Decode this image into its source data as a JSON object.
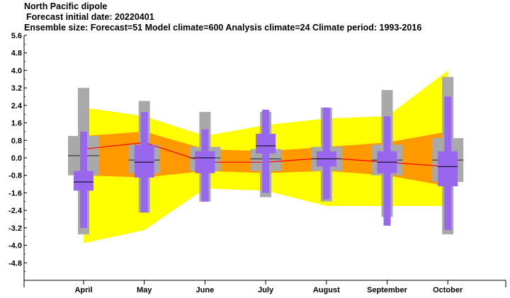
{
  "header": {
    "title": "North Pacific dipole",
    "forecast_date": "Forecast initial date: 20220401",
    "ensemble_info": "Ensemble size: Forecast=51 Model climate=600 Analysis climate=24   Climate period: 1993-2016"
  },
  "chart_data": {
    "type": "box",
    "title": "North Pacific dipole",
    "categories": [
      "April",
      "May",
      "June",
      "July",
      "August",
      "September",
      "October"
    ],
    "y_ticks": [
      "5.6",
      "4.8",
      "4.0",
      "3.2",
      "2.4",
      "1.6",
      "0.8",
      "0.0",
      "-0.8",
      "-1.6",
      "-2.4",
      "-3.2",
      "-4.0",
      "-4.8"
    ],
    "ylim": [
      -5.6,
      5.6
    ],
    "colors": {
      "outer_band": "#ffff00",
      "inner_band": "#ff9900",
      "climate_outer": "#a9a9a9",
      "climate_inner": "#8c8c8c",
      "forecast": "#9966ee",
      "median_line": "#ff0000"
    },
    "series": [
      {
        "name": "climate-range",
        "outer_band": [
          [
            -3.9,
            2.3
          ],
          [
            -3.3,
            1.9
          ],
          [
            -1.4,
            1.0
          ],
          [
            -1.5,
            1.5
          ],
          [
            -2.2,
            1.8
          ],
          [
            -2.2,
            1.9
          ],
          [
            -2.2,
            4.0
          ]
        ],
        "inner_band": [
          [
            -0.8,
            1.0
          ],
          [
            -0.9,
            1.2
          ],
          [
            -0.6,
            0.4
          ],
          [
            -0.7,
            0.3
          ],
          [
            -0.6,
            0.5
          ],
          [
            -0.8,
            0.7
          ],
          [
            -1.3,
            1.2
          ]
        ]
      },
      {
        "name": "model-climate",
        "whisker": [
          [
            -3.5,
            3.2
          ],
          [
            -2.5,
            2.6
          ],
          [
            -2.0,
            2.1
          ],
          [
            -1.8,
            2.1
          ],
          [
            -2.0,
            2.3
          ],
          [
            -2.7,
            3.1
          ],
          [
            -3.5,
            3.7
          ]
        ],
        "box": [
          [
            -0.8,
            1.0
          ],
          [
            -0.7,
            0.6
          ],
          [
            -0.6,
            0.5
          ],
          [
            -0.6,
            0.4
          ],
          [
            -0.6,
            0.5
          ],
          [
            -0.8,
            0.6
          ],
          [
            -1.1,
            0.9
          ]
        ],
        "median": [
          0.1,
          -0.1,
          0.0,
          -0.05,
          -0.05,
          -0.1,
          -0.1
        ]
      },
      {
        "name": "forecast",
        "whisker": [
          [
            -3.2,
            1.2
          ],
          [
            -2.5,
            2.1
          ],
          [
            -2.0,
            1.3
          ],
          [
            -1.6,
            2.2
          ],
          [
            -1.9,
            2.3
          ],
          [
            -3.1,
            1.9
          ],
          [
            -3.3,
            2.8
          ]
        ],
        "box": [
          [
            -1.5,
            -0.6
          ],
          [
            -0.9,
            0.6
          ],
          [
            -0.7,
            0.3
          ],
          [
            0.2,
            1.1
          ],
          [
            -0.4,
            0.3
          ],
          [
            -0.7,
            0.3
          ],
          [
            -1.3,
            0.3
          ]
        ],
        "median": [
          -1.1,
          -0.2,
          0.0,
          0.55,
          -0.05,
          -0.2,
          -0.4
        ]
      },
      {
        "name": "analysis-median",
        "values": [
          0.4,
          0.7,
          -0.2,
          -0.2,
          0.0,
          -0.2,
          -0.4
        ]
      }
    ]
  }
}
